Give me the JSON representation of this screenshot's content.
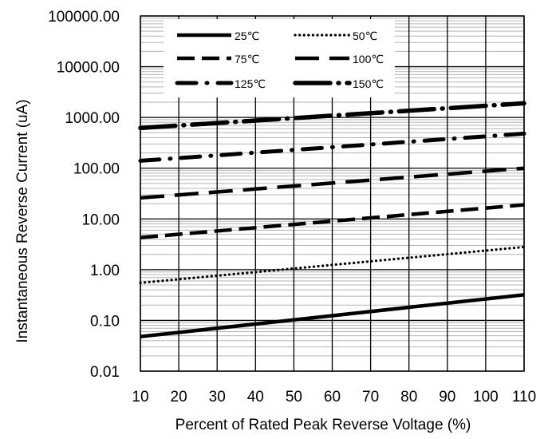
{
  "chart_data": {
    "type": "line",
    "title": "",
    "xlabel": "Percent of  Rated Peak Reverse Voltage (%)",
    "ylabel": "Instantaneous Reverse Current (uA)",
    "xlim": [
      10,
      110
    ],
    "ylim": [
      0.01,
      100000
    ],
    "yscale": "log",
    "grid": true,
    "legend_position": "top",
    "x_ticks": [
      10,
      20,
      30,
      40,
      50,
      60,
      70,
      80,
      90,
      100,
      110
    ],
    "y_ticks": [
      0.01,
      0.1,
      1,
      10,
      100,
      1000,
      10000,
      100000
    ],
    "x_tick_labels": [
      "10",
      "20",
      "30",
      "40",
      "50",
      "60",
      "70",
      "80",
      "90",
      "100",
      "110"
    ],
    "y_tick_labels": [
      "0.01",
      "0.10",
      "1.00",
      "10.00",
      "100.00",
      "1000.00",
      "10000.00",
      "100000.00"
    ],
    "x": [
      10,
      110
    ],
    "series": [
      {
        "name": "25℃",
        "values": [
          0.048,
          0.32
        ],
        "style": "solid"
      },
      {
        "name": "50℃",
        "values": [
          0.55,
          2.8
        ],
        "style": "dotted"
      },
      {
        "name": "75℃",
        "values": [
          4.3,
          19
        ],
        "style": "dashed"
      },
      {
        "name": "100℃",
        "values": [
          26,
          100
        ],
        "style": "long-dashed"
      },
      {
        "name": "125℃",
        "values": [
          140,
          480
        ],
        "style": "dash-dot"
      },
      {
        "name": "150℃",
        "values": [
          620,
          1900
        ],
        "style": "long-dash-dot"
      }
    ]
  }
}
